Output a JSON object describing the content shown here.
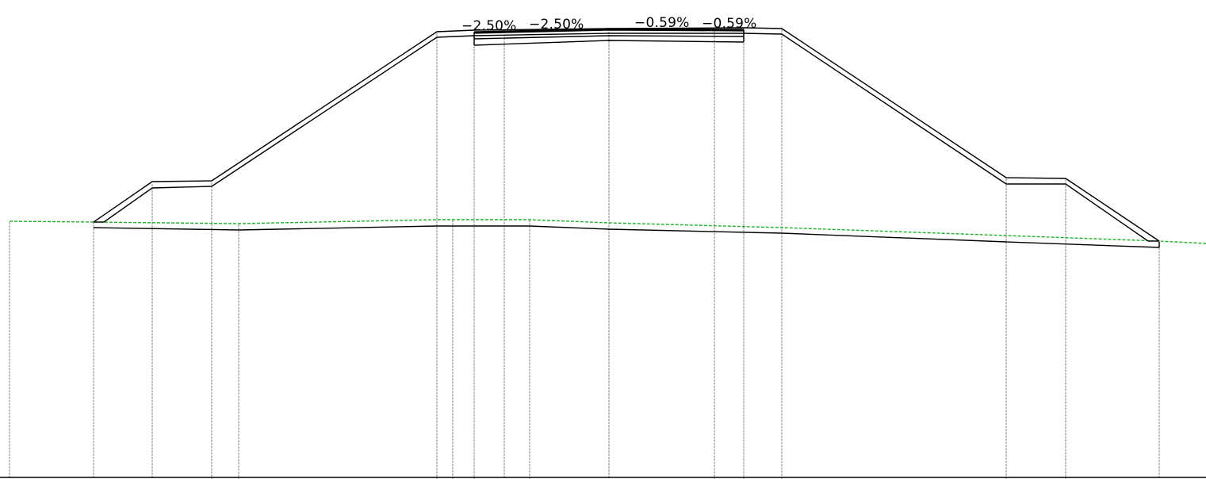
{
  "slope_labels": {
    "left_outer": "−2.50%",
    "left_inner": "−2.50%",
    "right_inner": "−0.59%",
    "right_outer": "−0.59%"
  },
  "colors": {
    "profile_line": "#000000",
    "existing_ground": "#1fae2a",
    "station_lines": "#b4b4b4",
    "background": "#ffffff"
  }
}
